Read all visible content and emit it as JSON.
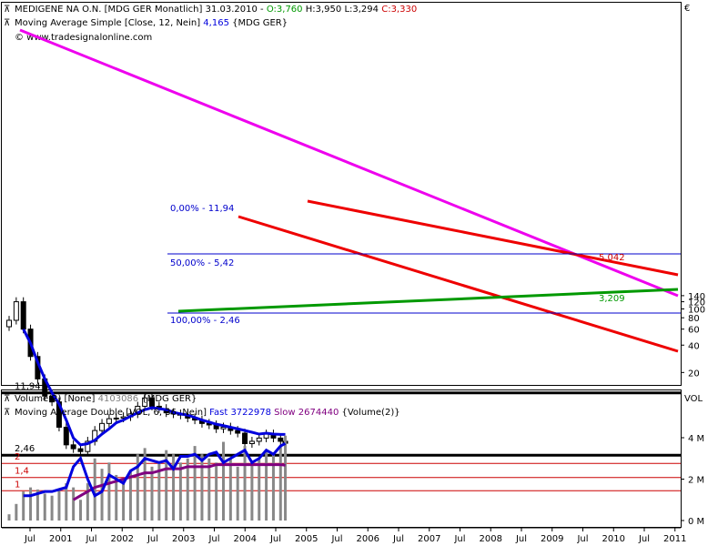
{
  "header": {
    "symbol_line": {
      "name": "MEDIGENE NA O.N. [MDG GER  Monatlich]",
      "date": "31.03.2010",
      "sep": "-",
      "open": "O:3,760",
      "high": "H:3,950",
      "low": "L:3,294",
      "close": "C:3,330"
    },
    "ma_line": {
      "label": "Moving Average Simple [Close, 12, Nein]",
      "value": "4,165",
      "tail": "{MDG GER}"
    },
    "copyright": "© www.tradesignalonline.com"
  },
  "price_axis": {
    "unit": "€",
    "ticks": [
      "140",
      "120",
      "100",
      "80",
      "60",
      "40",
      "20"
    ]
  },
  "levels": [
    {
      "label": "11,94",
      "value": 11.94,
      "color": "#000000"
    },
    {
      "label": "2,46",
      "value": 2.46,
      "color": "#000000"
    },
    {
      "label": "2",
      "value": 2,
      "color": "#cc0000"
    },
    {
      "label": "1,4",
      "value": 1.4,
      "color": "#cc0000"
    },
    {
      "label": "1",
      "value": 1,
      "color": "#cc0000"
    }
  ],
  "fib_labels": [
    "0,00% - 11,94",
    "50,00% - 5,42",
    "100,00% - 2,46"
  ],
  "marker_labels": {
    "upper": "5,042",
    "lower": "3,209"
  },
  "volume_header": {
    "line1": {
      "label": "Volume(2) [None]",
      "value": "4103086",
      "tail": "{MDG GER}"
    },
    "line2": {
      "label": "Moving Average Double [VOL, 6, 36, Nein]",
      "fast": "Fast 3722978",
      "slow": "Slow 2674440",
      "tail": "{Volume(2)}"
    }
  },
  "volume_axis": {
    "unit": "VOL",
    "ticks": [
      "4 M",
      "2 M",
      "0 M"
    ]
  },
  "x_axis": {
    "labels": [
      "Jul",
      "2001",
      "Jul",
      "2002",
      "Jul",
      "2003",
      "Jul",
      "2004",
      "Jul",
      "2005",
      "Jul",
      "2006",
      "Jul",
      "2007",
      "Jul",
      "2008",
      "Jul",
      "2009",
      "Jul",
      "2010",
      "Jul",
      "2011"
    ]
  },
  "colors": {
    "candles": "#000000",
    "ma": "#0000dd",
    "magenta_trend": "#ee00ee",
    "red_channel": "#ee0000",
    "support": "#009900",
    "vol_fast": "#0000dd",
    "vol_slow": "#800080",
    "vol_bars": "#888888"
  },
  "chart_data": {
    "type": "candlestick",
    "interval": "monthly",
    "price_scale": "log",
    "x": [
      "2000-07",
      "2000-10",
      "2001-01",
      "2001-04",
      "2001-07",
      "2001-10",
      "2002-01",
      "2002-04",
      "2002-07",
      "2002-10",
      "2003-01",
      "2003-04",
      "2003-07",
      "2003-10",
      "2004-01",
      "2004-04",
      "2004-07",
      "2004-10",
      "2005-01",
      "2005-04",
      "2005-07",
      "2005-10",
      "2006-01",
      "2006-04",
      "2006-07",
      "2006-10",
      "2007-01",
      "2007-04",
      "2007-07",
      "2007-10",
      "2008-01",
      "2008-04",
      "2008-07",
      "2008-10",
      "2009-01",
      "2009-04",
      "2009-07",
      "2009-10",
      "2010-01",
      "2010-03"
    ],
    "close": [
      75,
      120,
      60,
      30,
      17,
      11,
      9.5,
      5,
      3.2,
      2.9,
      2.7,
      3.5,
      4.6,
      5.5,
      6.2,
      6.3,
      6.5,
      7.0,
      8.5,
      10.5,
      8.5,
      8.0,
      7.2,
      7.0,
      6.8,
      6.3,
      6.0,
      5.5,
      5.3,
      4.8,
      5.0,
      4.6,
      4.3,
      3.3,
      3.5,
      3.8,
      4.2,
      3.8,
      3.5,
      3.33
    ],
    "ma_12": [
      null,
      null,
      60,
      42,
      26,
      17,
      12,
      9.0,
      6.0,
      3.8,
      3.2,
      3.3,
      3.6,
      4.2,
      4.8,
      5.6,
      6.0,
      6.6,
      7.2,
      7.8,
      8.2,
      8.0,
      7.8,
      7.3,
      7.0,
      6.8,
      6.4,
      6.0,
      5.7,
      5.4,
      5.2,
      5.0,
      4.8,
      4.6,
      4.4,
      4.2,
      4.3,
      4.2,
      4.17,
      4.165
    ],
    "volume_millions": [
      0.3,
      0.8,
      1.4,
      1.6,
      1.5,
      1.3,
      1.2,
      1.5,
      1.8,
      1.6,
      1.0,
      1.8,
      3.0,
      2.5,
      2.8,
      2.2,
      2.0,
      2.4,
      3.2,
      3.5,
      2.6,
      2.8,
      3.4,
      3.2,
      2.8,
      3.0,
      3.6,
      3.2,
      3.0,
      2.8,
      3.8,
      3.0,
      2.6,
      3.6,
      2.8,
      3.0,
      3.4,
      3.2,
      3.6,
      4.1
    ],
    "volume_fast": [
      null,
      null,
      1.2,
      1.2,
      1.3,
      1.4,
      1.4,
      1.5,
      1.6,
      2.6,
      3.0,
      2.0,
      1.2,
      1.4,
      2.2,
      2.0,
      1.8,
      2.4,
      2.6,
      3.0,
      2.9,
      2.8,
      2.9,
      2.5,
      3.1,
      3.1,
      3.2,
      2.9,
      3.2,
      3.3,
      2.8,
      3.0,
      3.2,
      3.4,
      2.8,
      3.0,
      3.4,
      3.2,
      3.6,
      3.72
    ],
    "volume_slow": [
      null,
      null,
      null,
      null,
      null,
      null,
      null,
      null,
      null,
      1.0,
      1.2,
      1.4,
      1.6,
      1.7,
      1.8,
      1.9,
      2.0,
      2.1,
      2.2,
      2.3,
      2.3,
      2.4,
      2.5,
      2.5,
      2.5,
      2.6,
      2.6,
      2.6,
      2.6,
      2.7,
      2.7,
      2.7,
      2.7,
      2.7,
      2.7,
      2.7,
      2.7,
      2.7,
      2.7,
      2.67
    ],
    "ylim": [
      0.8,
      160
    ]
  }
}
